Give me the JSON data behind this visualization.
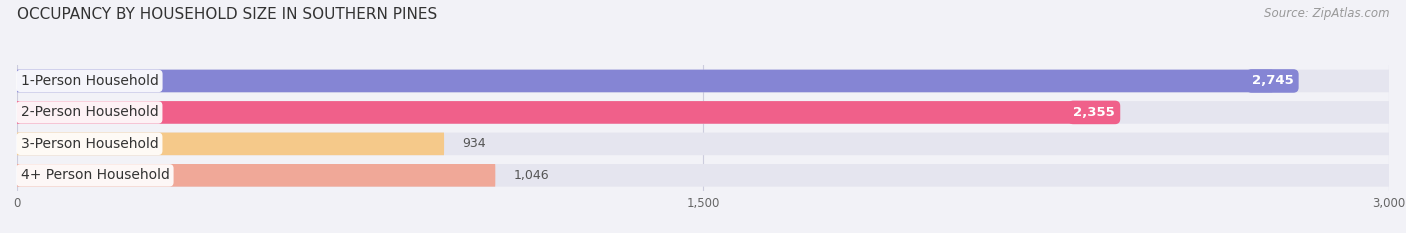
{
  "title": "OCCUPANCY BY HOUSEHOLD SIZE IN SOUTHERN PINES",
  "source": "Source: ZipAtlas.com",
  "categories": [
    "1-Person Household",
    "2-Person Household",
    "3-Person Household",
    "4+ Person Household"
  ],
  "values": [
    2745,
    2355,
    934,
    1046
  ],
  "bar_colors": [
    "#8585d4",
    "#f0608a",
    "#f5c98a",
    "#f0a898"
  ],
  "value_badge_colors": [
    "#8585d4",
    "#f0608a",
    "#333333",
    "#333333"
  ],
  "xlim": [
    0,
    3000
  ],
  "xticks": [
    0,
    1500,
    3000
  ],
  "background_color": "#f2f2f7",
  "bar_background_color": "#e5e5ef",
  "title_fontsize": 11,
  "source_fontsize": 8.5,
  "label_fontsize": 10,
  "value_fontsize": 9
}
